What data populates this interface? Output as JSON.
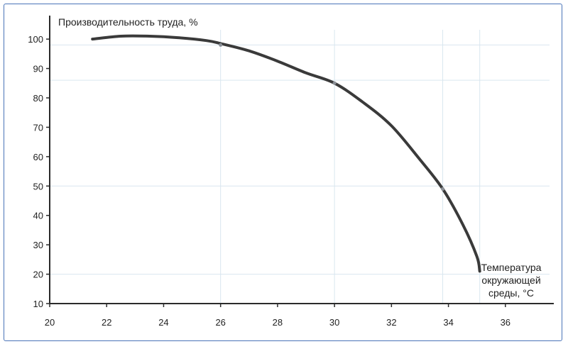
{
  "chart_data": {
    "type": "line",
    "ylabel": "Производительность труда, %",
    "xlabel_lines": [
      "Температура",
      "окружающей",
      "среды, °С"
    ],
    "x_ticks": [
      "20",
      "22",
      "24",
      "26",
      "28",
      "30",
      "32",
      "34",
      "36"
    ],
    "y_ticks": [
      "10",
      "20",
      "30",
      "40",
      "50",
      "60",
      "70",
      "80",
      "90",
      "100"
    ],
    "xlim": [
      20,
      37.7
    ],
    "ylim": [
      10,
      108
    ],
    "series": [
      {
        "x": [
          21.5,
          22.5,
          23.5,
          24.5,
          25.5,
          26.0,
          27.0,
          28.0,
          29.0,
          30.0,
          31.0,
          32.0,
          33.0,
          33.8,
          34.5,
          35.0,
          35.1
        ],
        "y": [
          100,
          101,
          101,
          100.5,
          99.5,
          98.5,
          96,
          92.5,
          88.5,
          85,
          78.5,
          70.5,
          59,
          49,
          37,
          26,
          21
        ]
      }
    ],
    "marked_points": [
      {
        "x": 26,
        "y": 98
      },
      {
        "x": 30,
        "y": 85
      },
      {
        "x": 33.8,
        "y": 49
      }
    ],
    "reference_lines": [
      {
        "orientation": "horizontal",
        "value": 98
      },
      {
        "orientation": "horizontal",
        "value": 86
      },
      {
        "orientation": "horizontal",
        "value": 50
      },
      {
        "orientation": "horizontal",
        "value": 20
      },
      {
        "orientation": "vertical",
        "value": 26
      },
      {
        "orientation": "vertical",
        "value": 30
      },
      {
        "orientation": "vertical",
        "value": 33.8
      },
      {
        "orientation": "vertical",
        "value": 35.1
      }
    ],
    "grid": false,
    "colors": {
      "curve": "#3a3a3a",
      "axis": "#2b2b2b",
      "reference": "#d9e6ef",
      "frame": "#4a74b8"
    }
  }
}
